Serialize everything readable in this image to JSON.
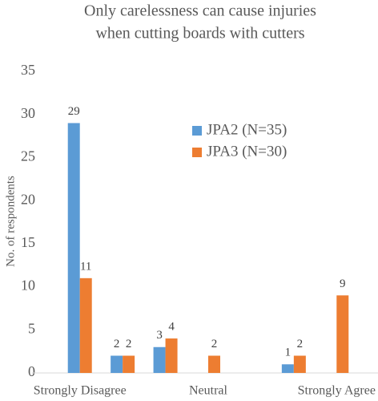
{
  "chart_data": {
    "type": "bar",
    "title": [
      "Only carelessness can cause injuries",
      "when cutting boards with cutters"
    ],
    "y_label": "No. of respondents",
    "categories": [
      "Strongly Disagree",
      null,
      null,
      "Neutral",
      null,
      null,
      "Strongly Agree"
    ],
    "series": [
      {
        "name": "JPA2 (N=35)",
        "color": "#5b9bd5",
        "values": [
          29,
          2,
          3,
          null,
          null,
          1,
          null
        ]
      },
      {
        "name": "JPA3 (N=30)",
        "color": "#ed7d31",
        "values": [
          11,
          2,
          4,
          2,
          null,
          2,
          9
        ]
      }
    ],
    "ylim": [
      0,
      35
    ],
    "yticks": [
      0,
      5,
      10,
      15,
      20,
      25,
      30,
      35
    ]
  }
}
